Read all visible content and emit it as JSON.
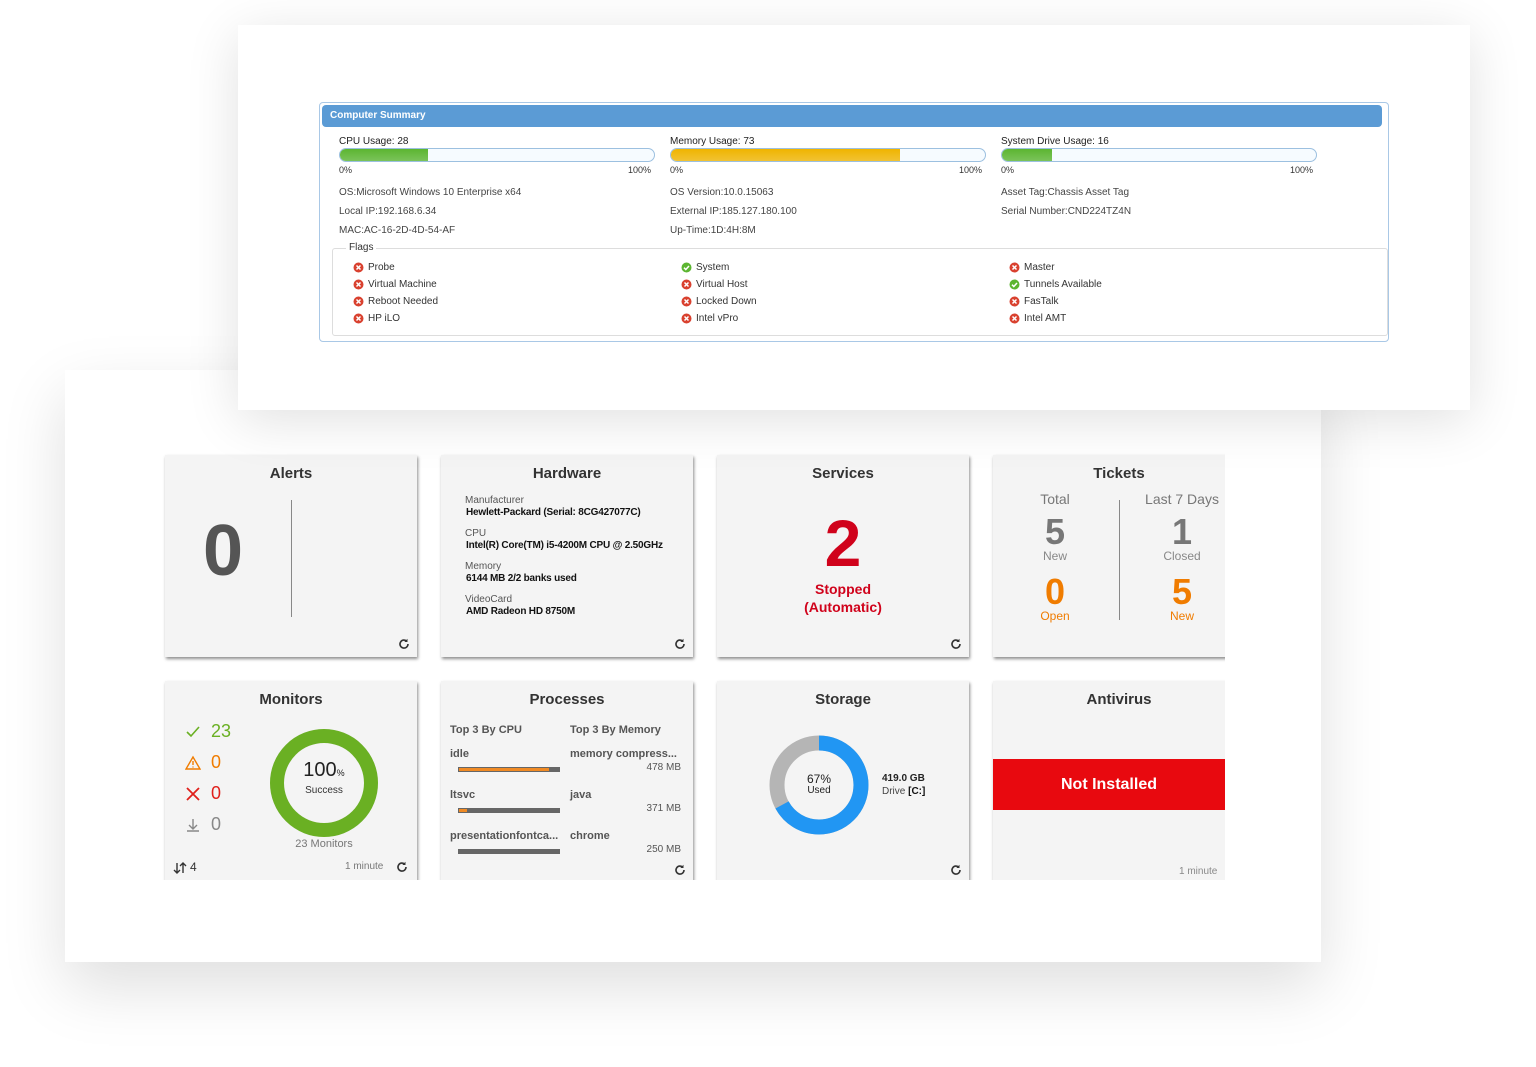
{
  "summary": {
    "title": "Computer Summary",
    "usages": [
      {
        "label": "CPU Usage:",
        "value": 28,
        "color": "#5cb531"
      },
      {
        "label": "Memory Usage:",
        "value": 73,
        "color": "#f0b400"
      },
      {
        "label": "System Drive Usage:",
        "value": 16,
        "color": "#5cb531"
      }
    ],
    "scale": [
      {
        "value": 0,
        "label": "0%"
      },
      {
        "value": 100,
        "label": "100%"
      }
    ],
    "info": [
      [
        "OS:Microsoft Windows 10 Enterprise x64",
        "Local IP:192.168.6.34",
        "MAC:AC-16-2D-4D-54-AF"
      ],
      [
        "OS Version:10.0.15063",
        "External IP:185.127.180.100",
        "Up-Time:1D:4H:8M"
      ],
      [
        "Asset Tag:Chassis Asset Tag",
        "Serial Number:CND224TZ4N"
      ]
    ],
    "flags_title": "Flags",
    "flags": [
      [
        {
          "name": "Probe",
          "ok": false
        },
        {
          "name": "Virtual Machine",
          "ok": false
        },
        {
          "name": "Reboot Needed",
          "ok": false
        },
        {
          "name": "HP iLO",
          "ok": false
        }
      ],
      [
        {
          "name": "System",
          "ok": true
        },
        {
          "name": "Virtual Host",
          "ok": false
        },
        {
          "name": "Locked Down",
          "ok": false
        },
        {
          "name": "Intel vPro",
          "ok": false
        }
      ],
      [
        {
          "name": "Master",
          "ok": false
        },
        {
          "name": "Tunnels Available",
          "ok": true
        },
        {
          "name": "FasTalk",
          "ok": false
        },
        {
          "name": "Intel AMT",
          "ok": false
        }
      ]
    ]
  },
  "tiles": {
    "alerts": {
      "title": "Alerts",
      "count": 0
    },
    "hardware": {
      "title": "Hardware",
      "items": [
        {
          "label": "Manufacturer",
          "value": "Hewlett-Packard (Serial: 8CG427077C)"
        },
        {
          "label": "CPU",
          "value": "Intel(R) Core(TM) i5-4200M CPU @ 2.50GHz"
        },
        {
          "label": "Memory",
          "value": "6144 MB 2/2 banks used"
        },
        {
          "label": "VideoCard",
          "value": "AMD Radeon HD 8750M"
        }
      ]
    },
    "services": {
      "title": "Services",
      "count": 2,
      "status": [
        "Stopped",
        "(Automatic)"
      ]
    },
    "tickets": {
      "title": "Tickets",
      "columns": [
        {
          "header": "Total",
          "top": {
            "value": 5,
            "label": "New"
          },
          "bottom": {
            "value": 0,
            "label": "Open"
          }
        },
        {
          "header": "Last 7 Days",
          "top": {
            "value": 1,
            "label": "Closed"
          },
          "bottom": {
            "value": 5,
            "label": "New"
          }
        }
      ]
    },
    "monitors": {
      "title": "Monitors",
      "counts": [
        {
          "icon": "check",
          "color": "#6ab023",
          "value": 23
        },
        {
          "icon": "warning",
          "color": "#f07c00",
          "value": 0
        },
        {
          "icon": "cross",
          "color": "#e0201b",
          "value": 0
        },
        {
          "icon": "down",
          "color": "#888",
          "value": 0
        }
      ],
      "success_percent": 100,
      "success_unit": "%",
      "success_label": "Success",
      "color": "#6ab023",
      "total_label": "23 Monitors",
      "sort_count": 4,
      "updated": "1 minute"
    },
    "processes": {
      "title": "Processes",
      "cpu_header": "Top 3 By CPU",
      "memory_header": "Top 3 By Memory",
      "cpu": [
        {
          "name": "idle",
          "value": 88
        },
        {
          "name": "ltsvc",
          "value": 8
        },
        {
          "name": "presentationfontca...",
          "value": 0
        }
      ],
      "memory": [
        {
          "name": "memory compress...",
          "value": "478 MB"
        },
        {
          "name": "java",
          "value": "371 MB"
        },
        {
          "name": "chrome",
          "value": "250 MB"
        }
      ]
    },
    "storage": {
      "title": "Storage",
      "used_percent": 67,
      "used_percent_label": "67%",
      "used_label": "Used",
      "size": "419.0 GB",
      "drive_label": "Drive",
      "drive": "[C:]"
    },
    "antivirus": {
      "title": "Antivirus",
      "status": "Not Installed",
      "updated": "1 minute"
    }
  }
}
